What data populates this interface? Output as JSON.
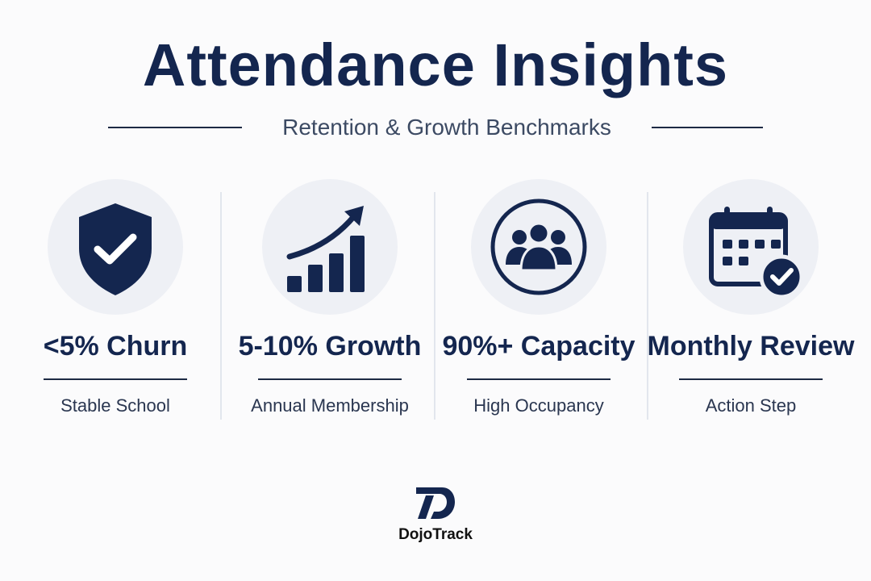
{
  "header": {
    "title": "Attendance Insights",
    "subtitle": "Retention & Growth Benchmarks"
  },
  "metrics": [
    {
      "icon": "shield-check-icon",
      "value": "<5% Churn",
      "caption": "Stable School"
    },
    {
      "icon": "growth-chart-icon",
      "value": "5-10% Growth",
      "caption": "Annual Membership"
    },
    {
      "icon": "group-icon",
      "value": "90%+ Capacity",
      "caption": "High Occupancy"
    },
    {
      "icon": "calendar-check-icon",
      "value": "Monthly Review",
      "caption": "Action Step"
    }
  ],
  "brand": {
    "name": "DojoTrack"
  },
  "colors": {
    "navy": "#14264f",
    "circle_bg": "#eef0f5",
    "divider": "#e2e6ed"
  }
}
